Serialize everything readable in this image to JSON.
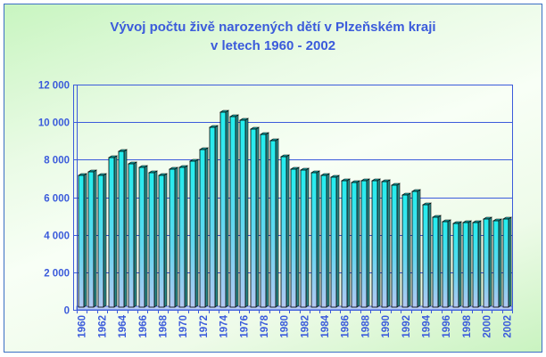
{
  "chart_data": {
    "type": "bar",
    "title": "Vývoj počtu živě narozených dětí v Plzeňském kraji",
    "subtitle": "v letech 1960 - 2002",
    "xlabel": "",
    "ylabel": "",
    "ylim": [
      0,
      12000
    ],
    "yticks": [
      0,
      2000,
      4000,
      6000,
      8000,
      10000,
      12000
    ],
    "ytick_labels": [
      "0",
      "2 000",
      "4 000",
      "6 000",
      "8 000",
      "10 000",
      "12 000"
    ],
    "grid": true,
    "legend": null,
    "categories": [
      "1960",
      "1961",
      "1962",
      "1963",
      "1964",
      "1965",
      "1966",
      "1967",
      "1968",
      "1969",
      "1970",
      "1971",
      "1972",
      "1973",
      "1974",
      "1975",
      "1976",
      "1977",
      "1978",
      "1979",
      "1980",
      "1981",
      "1982",
      "1983",
      "1984",
      "1985",
      "1986",
      "1987",
      "1988",
      "1989",
      "1990",
      "1991",
      "1992",
      "1993",
      "1994",
      "1995",
      "1996",
      "1997",
      "1998",
      "1999",
      "2000",
      "2001",
      "2002"
    ],
    "xtick_labels_shown": [
      "1960",
      "1962",
      "1964",
      "1966",
      "1968",
      "1970",
      "1972",
      "1974",
      "1976",
      "1978",
      "1980",
      "1982",
      "1984",
      "1986",
      "1988",
      "1990",
      "1992",
      "1994",
      "1996",
      "1998",
      "2000",
      "2002"
    ],
    "values": [
      7150,
      7350,
      7150,
      8100,
      8450,
      7800,
      7600,
      7300,
      7150,
      7500,
      7600,
      7900,
      8550,
      9700,
      10550,
      10300,
      10100,
      9650,
      9350,
      9000,
      8150,
      7500,
      7450,
      7300,
      7150,
      7050,
      6900,
      6800,
      6900,
      6900,
      6850,
      6650,
      6100,
      6300,
      5600,
      4950,
      4700,
      4600,
      4650,
      4650,
      4850,
      4750,
      4850
    ],
    "colors": {
      "bar_top": "#22eeee",
      "bar_bottom": "#a9c6f0",
      "bar_side": "#2a8a8a",
      "gridline": "#3b5bdb",
      "text": "#3b5bdb",
      "frame_border": "#3b6fc4"
    }
  },
  "title": {
    "line1": "Vývoj počtu živě narozených dětí v Plzeňském kraji",
    "line2": "v letech 1960 - 2002"
  }
}
